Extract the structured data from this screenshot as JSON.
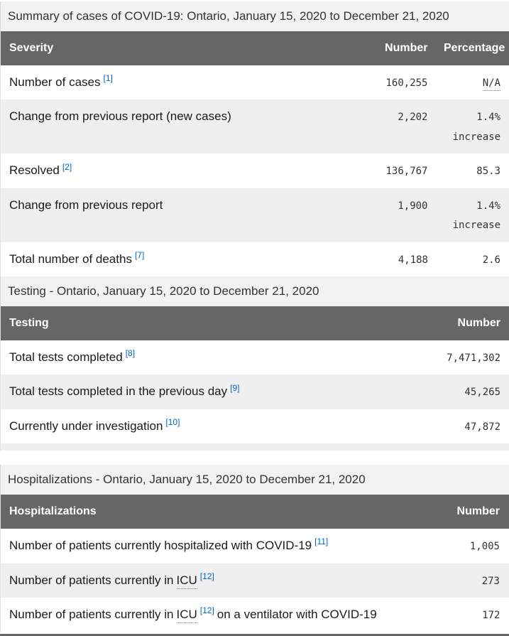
{
  "colors": {
    "header_bg": "#666666",
    "header_text": "#ffffff",
    "caption_bg": "#f2f2f2",
    "row_alt_bg": "#efefef",
    "row_bg": "#ffffff",
    "label_text": "#1a1a1a",
    "number_text": "#333333",
    "footnote_link": "#0066cc"
  },
  "summary_table": {
    "caption": "Summary of cases of COVID-19: Ontario, January 15, 2020 to December 21, 2020",
    "headers": {
      "severity": "Severity",
      "number": "Number",
      "percentage": "Percentage"
    },
    "rows": [
      {
        "label": "Number of cases",
        "footnote": "[1]",
        "number": "160,255",
        "percentage": "N/A",
        "percentage_is_abbr": true
      },
      {
        "label": "Change from previous report (new cases)",
        "number": "2,202",
        "percentage": "1.4%",
        "percentage_note": "increase"
      },
      {
        "label": "Resolved",
        "footnote": "[2]",
        "number": "136,767",
        "percentage": "85.3"
      },
      {
        "label": "Change from previous report",
        "number": "1,900",
        "percentage": "1.4%",
        "percentage_note": "increase"
      },
      {
        "label": "Total number of deaths",
        "footnote": "[7]",
        "number": "4,188",
        "percentage": "2.6"
      }
    ]
  },
  "testing_table": {
    "caption": "Testing - Ontario, January 15, 2020 to December 21, 2020",
    "headers": {
      "testing": "Testing",
      "number": "Number"
    },
    "rows": [
      {
        "label": "Total tests completed",
        "footnote": "[8]",
        "number": "7,471,302"
      },
      {
        "label": "Total tests completed in the previous day",
        "footnote": "[9]",
        "number": "45,265"
      },
      {
        "label": "Currently under investigation",
        "footnote": "[10]",
        "number": "47,872"
      }
    ],
    "has_trailing_empty_row": true
  },
  "hospitalizations_table": {
    "caption": "Hospitalizations - Ontario, January 15, 2020 to December 21, 2020",
    "headers": {
      "hospitalizations": "Hospitalizations",
      "number": "Number"
    },
    "rows": [
      {
        "label": "Number of patients currently hospitalized with COVID-19",
        "footnote": "[11]",
        "number": "1,005"
      },
      {
        "label_pre": "Number of patients currently in",
        "abbr": "ICU",
        "footnote": "[12]",
        "number": "273"
      },
      {
        "label_pre": "Number of patients currently in",
        "abbr": "ICU",
        "footnote": "[12]",
        "label_post": "on a ventilator with COVID-19",
        "number": "172"
      }
    ]
  }
}
